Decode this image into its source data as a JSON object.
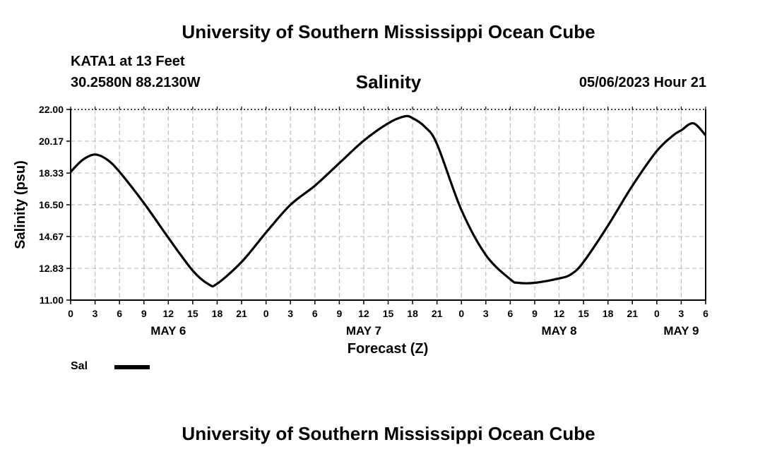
{
  "header": {
    "title": "University of Southern Mississippi Ocean Cube",
    "station": "KATA1 at 13 Feet",
    "coordinates": "30.2580N  88.2130W",
    "chart_title": "Salinity",
    "datetime": "05/06/2023 Hour 21"
  },
  "footer": {
    "title": "University of Southern Mississippi Ocean Cube"
  },
  "legend": {
    "label": "Sal",
    "color": "#000000"
  },
  "chart_data": {
    "type": "line",
    "title": "Salinity",
    "xlabel": "Forecast (Z)",
    "ylabel": "Salinity (psu)",
    "xlim": [
      0,
      78
    ],
    "ylim": [
      11.0,
      22.0
    ],
    "yticks": [
      "22.00",
      "20.17",
      "18.33",
      "16.50",
      "14.67",
      "12.83",
      "11.00"
    ],
    "ytick_values": [
      22.0,
      20.17,
      18.33,
      16.5,
      14.67,
      12.83,
      11.0
    ],
    "xticks": [
      0,
      3,
      6,
      9,
      12,
      15,
      18,
      21,
      24,
      27,
      30,
      33,
      36,
      39,
      42,
      45,
      48,
      51,
      54,
      57,
      60,
      63,
      66,
      69,
      72,
      75,
      78
    ],
    "xtick_labels": [
      "0",
      "3",
      "6",
      "9",
      "12",
      "15",
      "18",
      "21",
      "0",
      "3",
      "6",
      "9",
      "12",
      "15",
      "18",
      "21",
      "0",
      "3",
      "6",
      "9",
      "12",
      "15",
      "18",
      "21",
      "0",
      "3",
      "6"
    ],
    "date_labels": [
      {
        "label": "MAY 6",
        "x": 12
      },
      {
        "label": "MAY 7",
        "x": 36
      },
      {
        "label": "MAY 8",
        "x": 60
      },
      {
        "label": "MAY 9",
        "x": 75
      }
    ],
    "grid": true,
    "series": [
      {
        "name": "Sal",
        "x": [
          0,
          1.5,
          3,
          4.5,
          6,
          9,
          12,
          15,
          17,
          18,
          21,
          24,
          27,
          30,
          33,
          36,
          39,
          41,
          42,
          43.5,
          45,
          48,
          51,
          54,
          55,
          57,
          60,
          61.5,
          63,
          66,
          69,
          72,
          74,
          75,
          76.5,
          78
        ],
        "y": [
          18.4,
          19.1,
          19.4,
          19.1,
          18.4,
          16.6,
          14.6,
          12.7,
          11.9,
          11.95,
          13.2,
          14.9,
          16.5,
          17.6,
          18.9,
          20.2,
          21.2,
          21.6,
          21.5,
          21.0,
          20.0,
          16.2,
          13.6,
          12.2,
          12.0,
          12.0,
          12.25,
          12.5,
          13.2,
          15.3,
          17.6,
          19.6,
          20.5,
          20.8,
          21.2,
          20.5
        ]
      }
    ]
  }
}
